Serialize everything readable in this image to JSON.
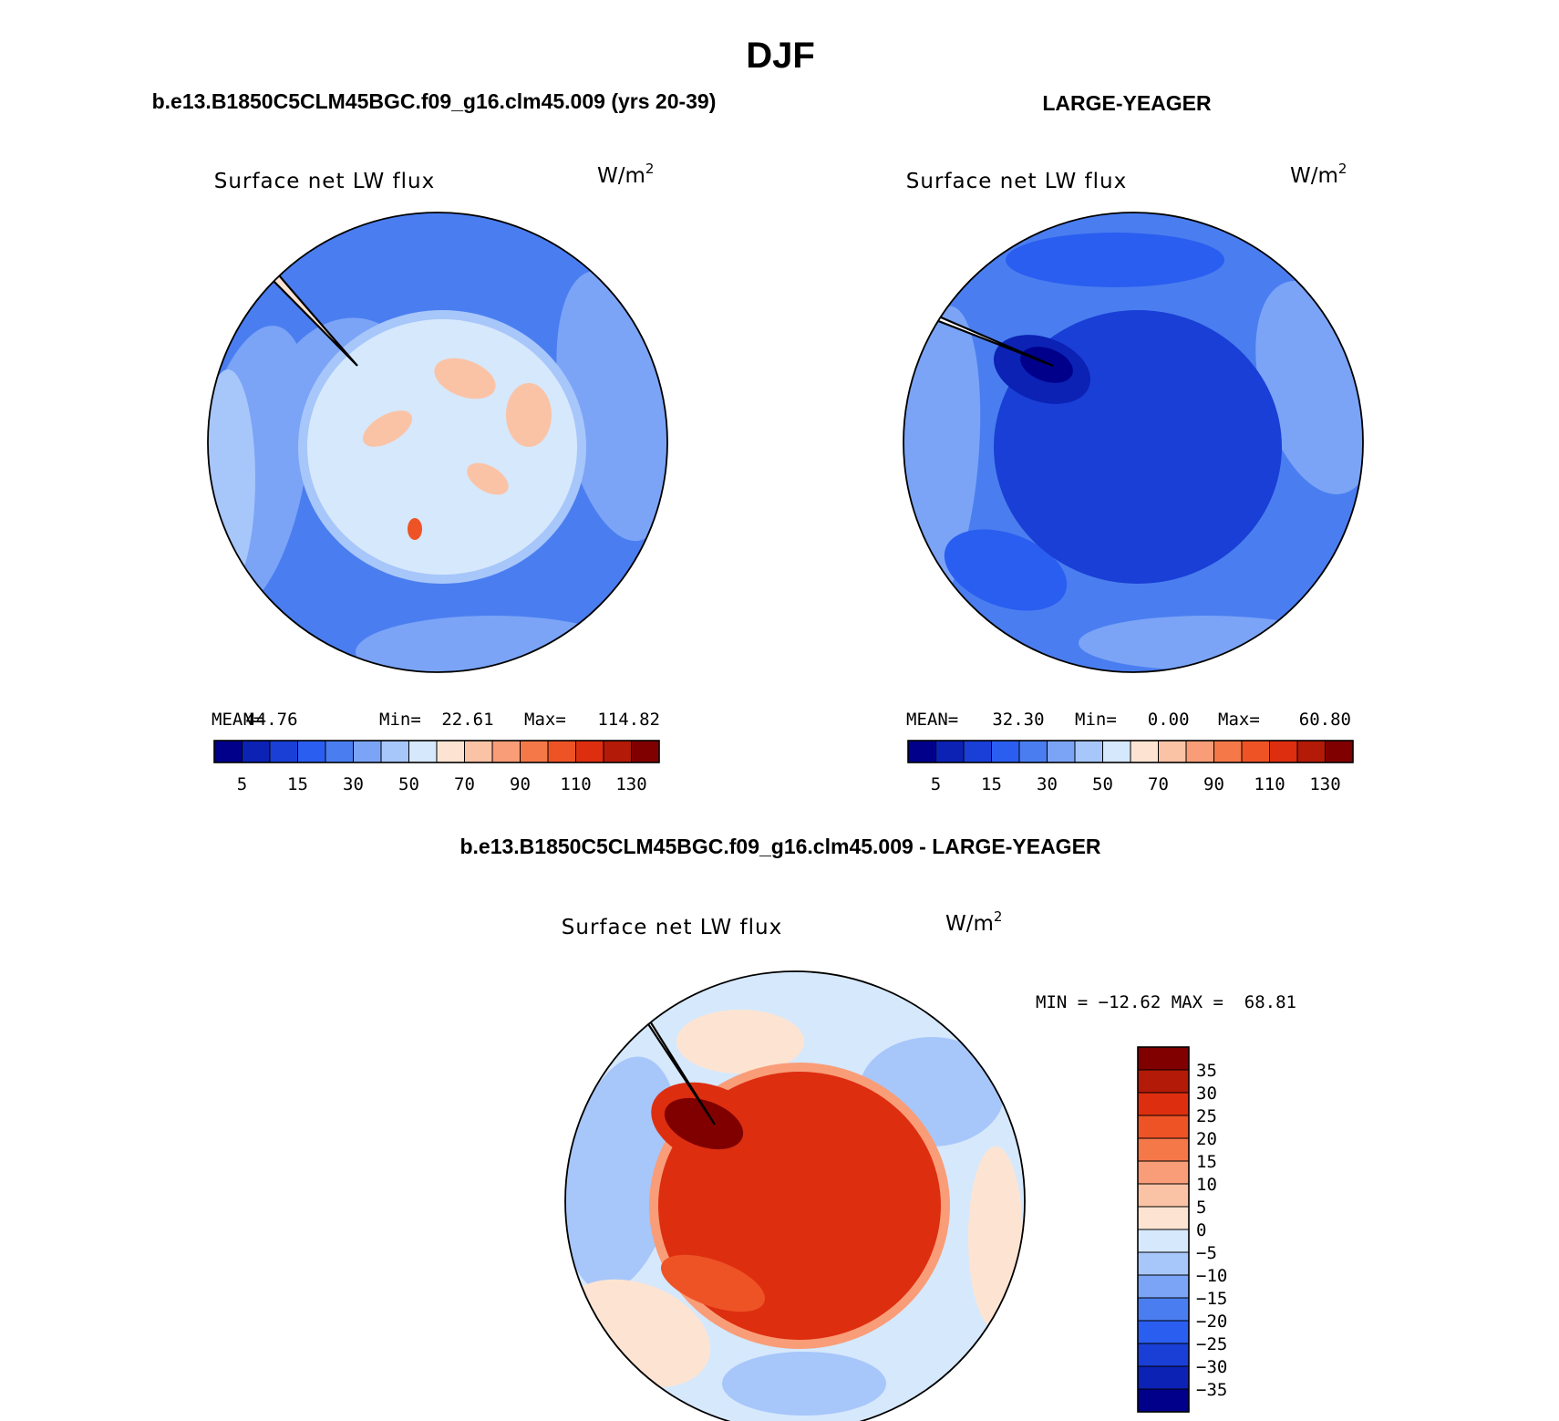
{
  "figure": {
    "title": "DJF"
  },
  "panels": [
    {
      "heading": "b.e13.B1850C5CLM45BGC.f09_g16.clm45.009 (yrs 20-39)",
      "variable": "Surface net LW flux",
      "units": "W/m",
      "units_sup": "2",
      "stats": {
        "mean_label": "MEAN=",
        "mean": "44.76",
        "min_label": "Min=",
        "min": "22.61",
        "max_label": "Max=",
        "max": "114.82"
      }
    },
    {
      "heading": "LARGE-YEAGER",
      "variable": "Surface net LW flux",
      "units": "W/m",
      "units_sup": "2",
      "stats": {
        "mean_label": "MEAN=",
        "mean": "32.30",
        "min_label": "Min=",
        "min": "0.00",
        "max_label": "Max=",
        "max": "60.80"
      }
    },
    {
      "heading": "b.e13.B1850C5CLM45BGC.f09_g16.clm45.009 - LARGE-YEAGER",
      "variable": "Surface net LW flux",
      "units": "W/m",
      "units_sup": "2",
      "minmax": "MIN = −12.62 MAX =  68.81"
    }
  ],
  "chart_data": [
    {
      "type": "heatmap",
      "projection": "south-polar-stereographic",
      "title": "Surface net LW flux",
      "units": "W/m2",
      "mean": 44.76,
      "min": 22.61,
      "max": 114.82,
      "colorbar": {
        "orientation": "horizontal",
        "levels": [
          5,
          10,
          15,
          20,
          30,
          40,
          50,
          60,
          70,
          80,
          90,
          100,
          110,
          120,
          130
        ],
        "tick_labels": [
          "5",
          "15",
          "30",
          "50",
          "70",
          "90",
          "110",
          "130"
        ],
        "colors": [
          "#00008b",
          "#0b22b4",
          "#1a3fd6",
          "#2a5ef0",
          "#4a7ef0",
          "#7ba4f7",
          "#a7c6fa",
          "#d6e8fc",
          "#fde4d2",
          "#fbc3a6",
          "#f99d78",
          "#f57848",
          "#ee5326",
          "#dd2e10",
          "#b31a07",
          "#800000"
        ]
      },
      "field": {
        "ocean": "#4a7ef0",
        "ocean_light": "#7ba4f7",
        "ocean_bands": "#a7c6fa",
        "coastal": "#d6e8fc",
        "continent": "#fde4d2",
        "continent_patches": "#fbc3a6",
        "hotspot": "#ee5326"
      }
    },
    {
      "type": "heatmap",
      "projection": "south-polar-stereographic",
      "title": "Surface net LW flux",
      "units": "W/m2",
      "mean": 32.3,
      "min": 0.0,
      "max": 60.8,
      "colorbar": {
        "orientation": "horizontal",
        "levels": [
          5,
          10,
          15,
          20,
          30,
          40,
          50,
          60,
          70,
          80,
          90,
          100,
          110,
          120,
          130
        ],
        "tick_labels": [
          "5",
          "15",
          "30",
          "50",
          "70",
          "90",
          "110",
          "130"
        ],
        "colors": [
          "#00008b",
          "#0b22b4",
          "#1a3fd6",
          "#2a5ef0",
          "#4a7ef0",
          "#7ba4f7",
          "#a7c6fa",
          "#d6e8fc",
          "#fde4d2",
          "#fbc3a6",
          "#f99d78",
          "#f57848",
          "#ee5326",
          "#dd2e10",
          "#b31a07",
          "#800000"
        ]
      },
      "field": {
        "ocean": "#4a7ef0",
        "ocean_light": "#7ba4f7",
        "ocean_deep": "#2a5ef0",
        "coastal_ring": "#1a3fd6",
        "weddell_core": "#0b22b4",
        "continent": "#ffffff"
      }
    },
    {
      "type": "heatmap",
      "projection": "south-polar-stereographic",
      "title": "Surface net LW flux",
      "units": "W/m2",
      "min": -12.62,
      "max": 68.81,
      "colorbar": {
        "orientation": "vertical",
        "levels": [
          -35,
          -30,
          -25,
          -20,
          -15,
          -10,
          -5,
          0,
          5,
          10,
          15,
          20,
          25,
          30,
          35
        ],
        "tick_labels": [
          "35",
          "30",
          "25",
          "20",
          "15",
          "10",
          "5",
          "0",
          "−5",
          "−10",
          "−15",
          "−20",
          "−25",
          "−30",
          "−35"
        ],
        "colors_top_to_bottom": [
          "#800000",
          "#b31a07",
          "#dd2e10",
          "#ee5326",
          "#f57848",
          "#f99d78",
          "#fbc3a6",
          "#fde4d2",
          "#d6e8fc",
          "#a7c6fa",
          "#7ba4f7",
          "#4a7ef0",
          "#2a5ef0",
          "#1a3fd6",
          "#0b22b4",
          "#00008b"
        ]
      },
      "field": {
        "ocean": "#d6e8fc",
        "ocean_warm": "#fde4d2",
        "ocean_cool": "#a7c6fa",
        "coastal_ring": "#dd2e10",
        "weddell_core": "#800000",
        "continent": "#ffffff"
      }
    }
  ]
}
